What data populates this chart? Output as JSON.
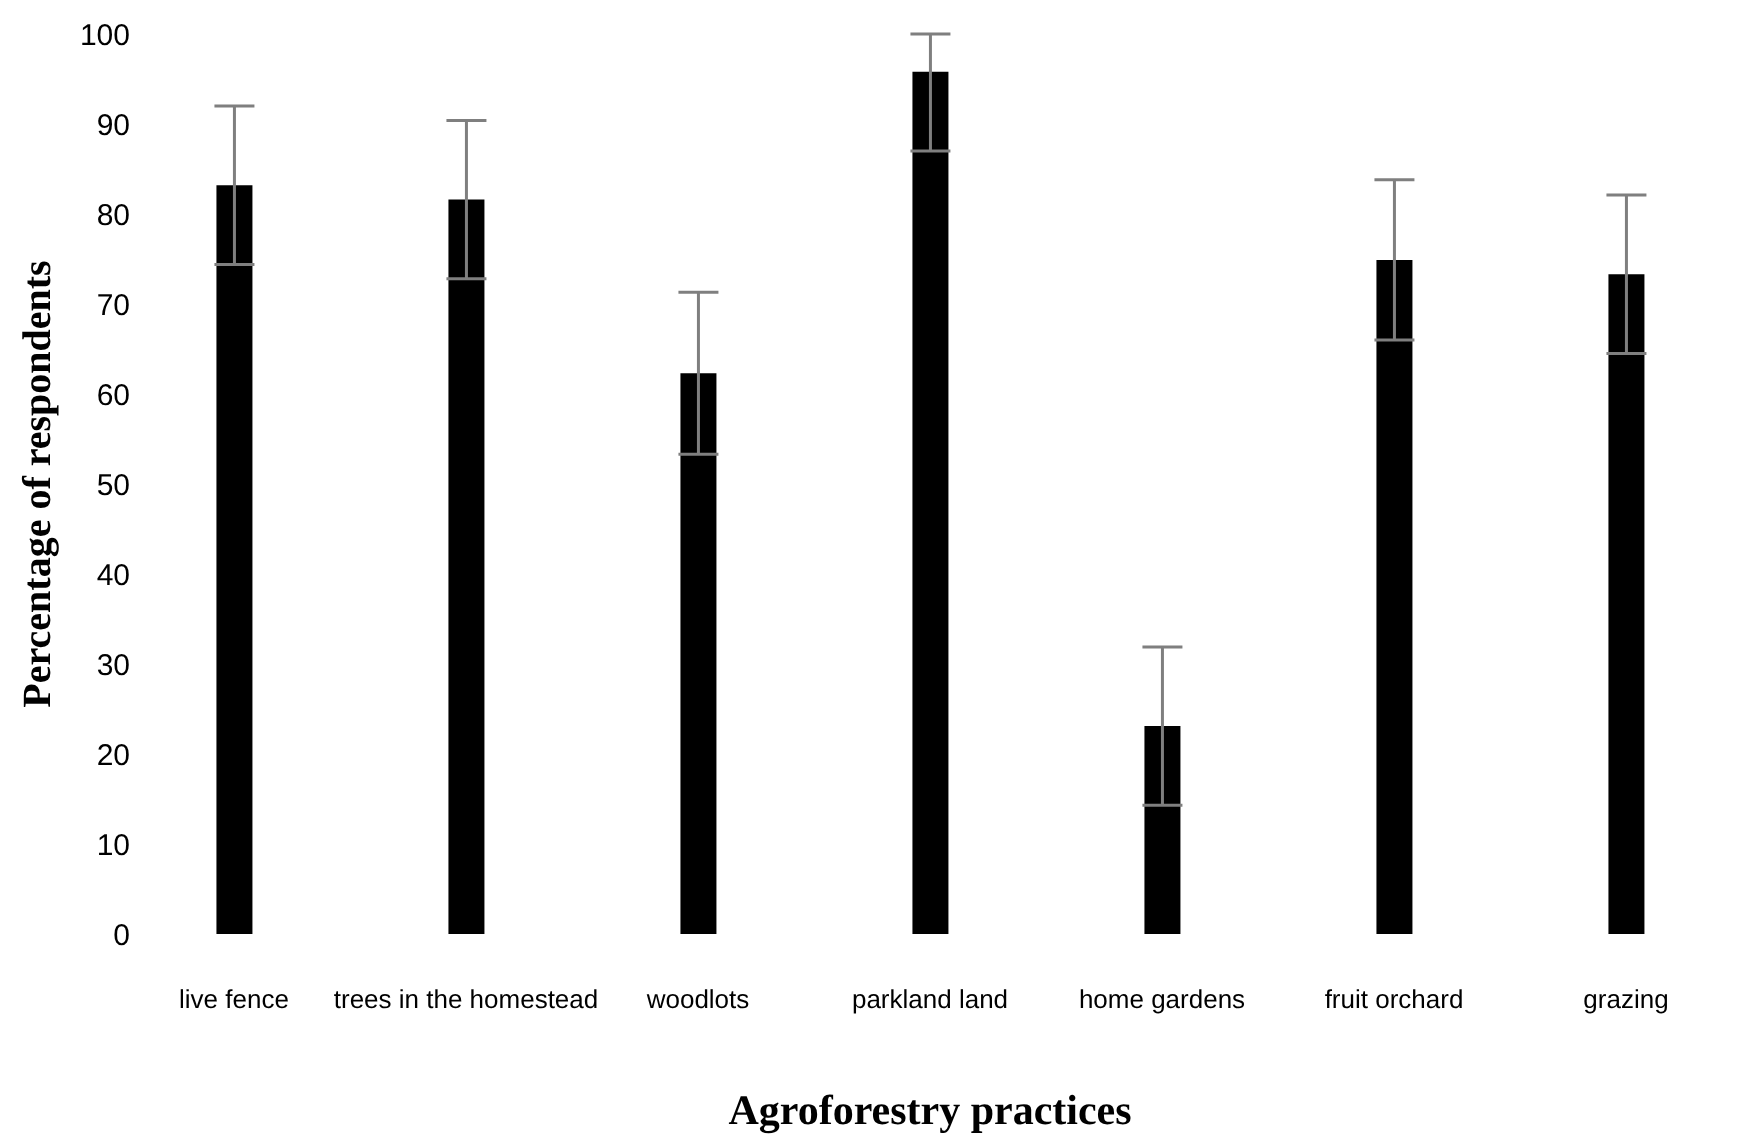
{
  "chart_data": {
    "type": "bar",
    "xlabel": "Agroforestry practices",
    "ylabel": "Percentage of respondents",
    "categories": [
      "live fence",
      "trees in the homestead",
      "woodlots",
      "parkland land",
      "home gardens",
      "fruit orchard",
      "grazing"
    ],
    "values": [
      83.2,
      81.6,
      62.3,
      95.8,
      23.1,
      74.9,
      73.3
    ],
    "errors": [
      8.8,
      8.8,
      9,
      [
        87,
        100
      ],
      8.8,
      8.9,
      8.8
    ],
    "color": "#000000",
    "ylim": [
      0,
      100
    ],
    "yticks": [
      0,
      10,
      20,
      30,
      40,
      50,
      60,
      70,
      80,
      90,
      100
    ]
  }
}
